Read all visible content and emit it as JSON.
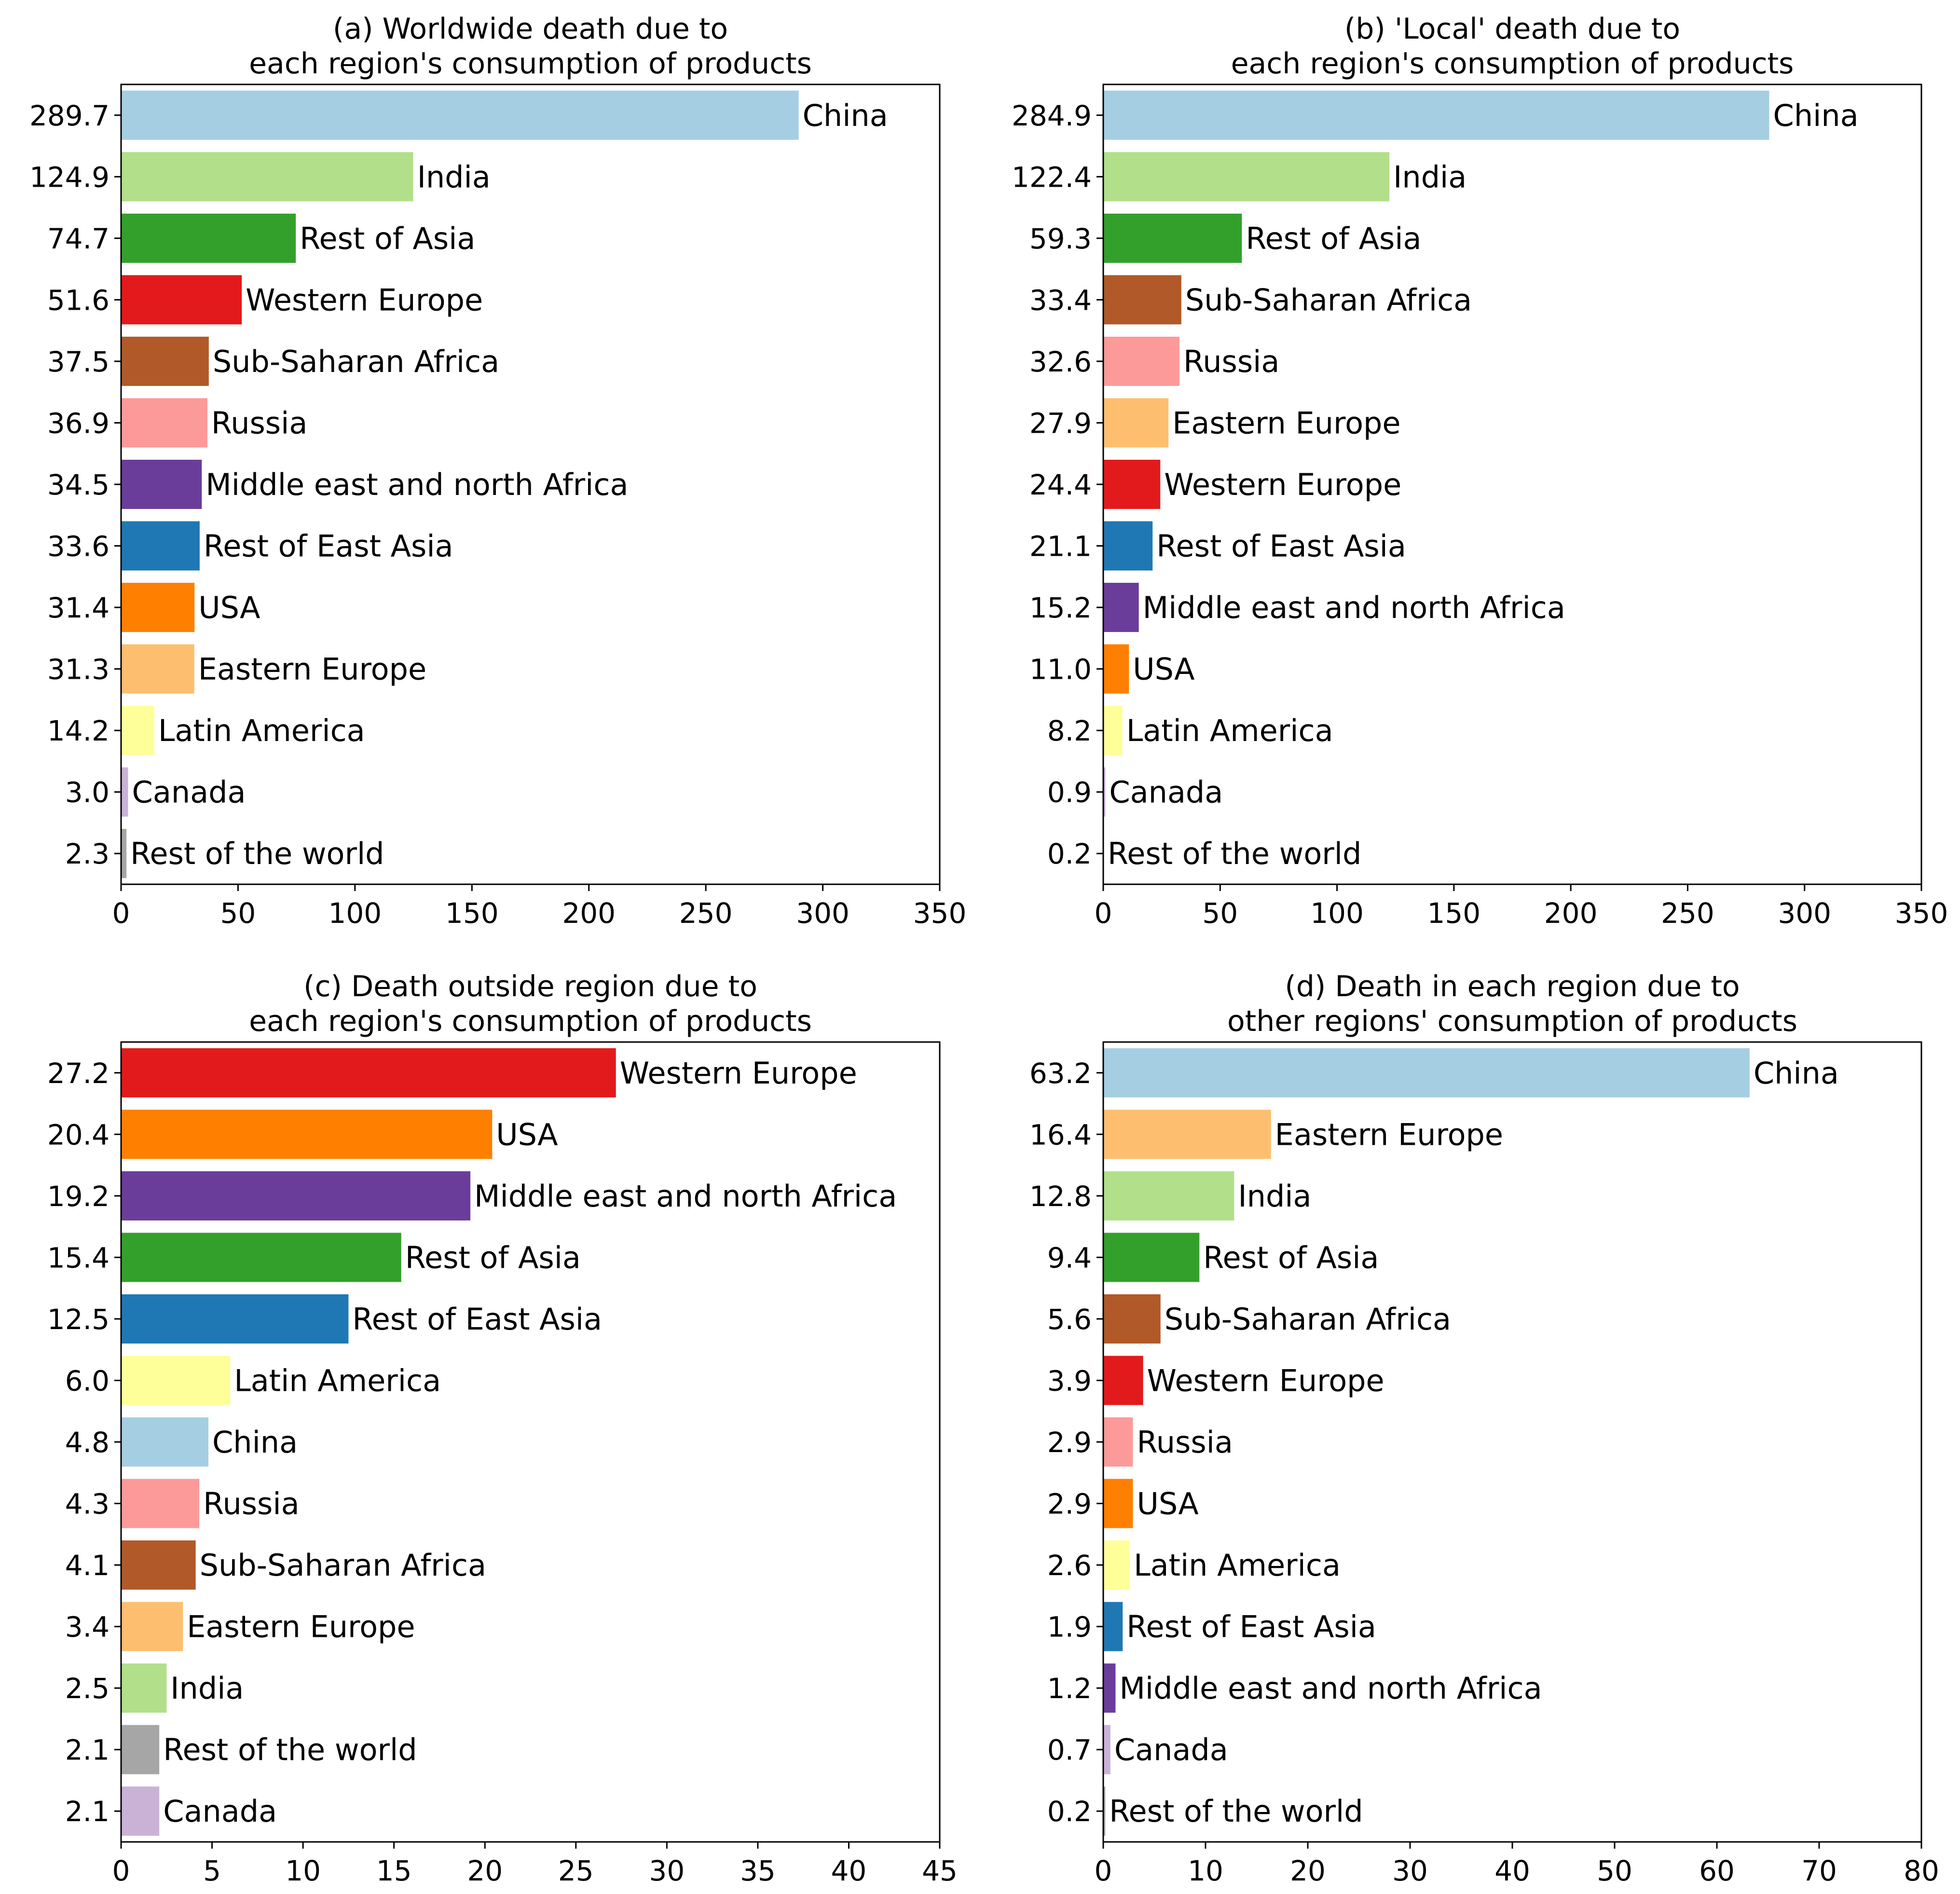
{
  "colors": {
    "China": "#a6cee3",
    "India": "#b2df8a",
    "Rest of Asia": "#33a02c",
    "Western Europe": "#e31a1c",
    "Sub-Saharan Africa": "#b15928",
    "Russia": "#fb9a99",
    "Middle east and north Africa": "#6a3d9a",
    "Rest of East Asia": "#1f78b4",
    "USA": "#ff7f00",
    "Eastern Europe": "#fdbf6f",
    "Latin America": "#ffff99",
    "Canada": "#cab2d6",
    "Rest of the world": "#a6a6a6"
  },
  "chart_data": [
    {
      "type": "bar",
      "orientation": "horizontal",
      "title": [
        "(a) Worldwide death due to",
        "each region's consumption of products"
      ],
      "categories": [
        "China",
        "India",
        "Rest of Asia",
        "Western Europe",
        "Sub-Saharan Africa",
        "Russia",
        "Middle east and north Africa",
        "Rest of East Asia",
        "USA",
        "Eastern Europe",
        "Latin America",
        "Canada",
        "Rest of the world"
      ],
      "values": [
        289.7,
        124.9,
        74.7,
        51.6,
        37.5,
        36.9,
        34.5,
        33.6,
        31.4,
        31.3,
        14.2,
        3.0,
        2.3
      ],
      "value_labels": [
        "289.7",
        "124.9",
        "74.7",
        "51.6",
        "37.5",
        "36.9",
        "34.5",
        "33.6",
        "31.4",
        "31.3",
        "14.2",
        "3.0",
        "2.3"
      ],
      "xlim": [
        0,
        350
      ],
      "xticks": [
        0,
        50,
        100,
        150,
        200,
        250,
        300,
        350
      ]
    },
    {
      "type": "bar",
      "orientation": "horizontal",
      "title": [
        "(b) 'Local' death due to",
        "each region's consumption of products"
      ],
      "categories": [
        "China",
        "India",
        "Rest of Asia",
        "Sub-Saharan Africa",
        "Russia",
        "Eastern Europe",
        "Western Europe",
        "Rest of East Asia",
        "Middle east and north Africa",
        "USA",
        "Latin America",
        "Canada",
        "Rest of the world"
      ],
      "values": [
        284.9,
        122.4,
        59.3,
        33.4,
        32.6,
        27.9,
        24.4,
        21.1,
        15.2,
        11.0,
        8.2,
        0.9,
        0.2
      ],
      "value_labels": [
        "284.9",
        "122.4",
        "59.3",
        "33.4",
        "32.6",
        "27.9",
        "24.4",
        "21.1",
        "15.2",
        "11.0",
        "8.2",
        "0.9",
        "0.2"
      ],
      "xlim": [
        0,
        350
      ],
      "xticks": [
        0,
        50,
        100,
        150,
        200,
        250,
        300,
        350
      ]
    },
    {
      "type": "bar",
      "orientation": "horizontal",
      "title": [
        "(c) Death outside region due to",
        "each region's consumption of products"
      ],
      "categories": [
        "Western Europe",
        "USA",
        "Middle east and north Africa",
        "Rest of Asia",
        "Rest of East Asia",
        "Latin America",
        "China",
        "Russia",
        "Sub-Saharan Africa",
        "Eastern Europe",
        "India",
        "Rest of the world",
        "Canada"
      ],
      "values": [
        27.2,
        20.4,
        19.2,
        15.4,
        12.5,
        6.0,
        4.8,
        4.3,
        4.1,
        3.4,
        2.5,
        2.1,
        2.1
      ],
      "value_labels": [
        "27.2",
        "20.4",
        "19.2",
        "15.4",
        "12.5",
        "6.0",
        "4.8",
        "4.3",
        "4.1",
        "3.4",
        "2.5",
        "2.1",
        "2.1"
      ],
      "xlim": [
        0,
        45
      ],
      "xticks": [
        0,
        5,
        10,
        15,
        20,
        25,
        30,
        35,
        40,
        45
      ]
    },
    {
      "type": "bar",
      "orientation": "horizontal",
      "title": [
        "(d) Death in each region due to",
        "other regions' consumption of products"
      ],
      "categories": [
        "China",
        "Eastern Europe",
        "India",
        "Rest of Asia",
        "Sub-Saharan Africa",
        "Western Europe",
        "Russia",
        "USA",
        "Latin America",
        "Rest of East Asia",
        "Middle east and north Africa",
        "Canada",
        "Rest of the world"
      ],
      "values": [
        63.2,
        16.4,
        12.8,
        9.4,
        5.6,
        3.9,
        2.9,
        2.9,
        2.6,
        1.9,
        1.2,
        0.7,
        0.2
      ],
      "value_labels": [
        "63.2",
        "16.4",
        "12.8",
        "9.4",
        "5.6",
        "3.9",
        "2.9",
        "2.9",
        "2.6",
        "1.9",
        "1.2",
        "0.7",
        "0.2"
      ],
      "xlim": [
        0,
        80
      ],
      "xticks": [
        0,
        10,
        20,
        30,
        40,
        50,
        60,
        70,
        80
      ]
    }
  ]
}
